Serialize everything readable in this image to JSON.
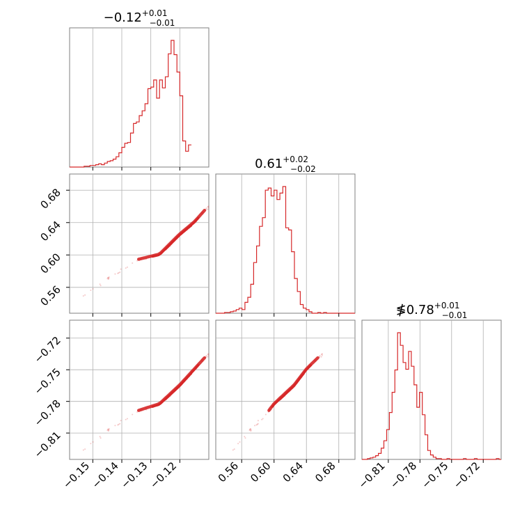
{
  "figure": {
    "hist_color": "#d62728",
    "grid_color": "#b0b0b0",
    "frame_color": "#7f7f7f"
  },
  "params": [
    {
      "title_main": "−0.12",
      "title_up": "+0.01",
      "title_down": "−0.01",
      "range": [
        -0.158,
        -0.11
      ],
      "ticks": [
        -0.15,
        -0.14,
        -0.13,
        -0.12
      ],
      "tick_labels": [
        "−0.15",
        "−0.14",
        "−0.13",
        "−0.12"
      ]
    },
    {
      "title_main": "0.61",
      "title_up": "+0.02",
      "title_down": "−0.02",
      "range": [
        0.528,
        0.7
      ],
      "ticks": [
        0.56,
        0.6,
        0.64,
        0.68
      ],
      "tick_labels": [
        "0.56",
        "0.60",
        "0.64",
        "0.68"
      ]
    },
    {
      "title_main": "≸0.78",
      "title_up": "+0.01",
      "title_down": "−0.01",
      "range": [
        -0.835,
        -0.703
      ],
      "ticks": [
        -0.81,
        -0.78,
        -0.75,
        -0.72
      ],
      "tick_labels": [
        "−0.81",
        "−0.78",
        "−0.75",
        "−0.72"
      ]
    }
  ],
  "chart_data": {
    "type": "corner",
    "parameters": [
      "p1",
      "p2",
      "p3"
    ],
    "hist1": {
      "bin_start": -0.158,
      "bin_width": 0.001,
      "counts": [
        0,
        0,
        0,
        0,
        0,
        1,
        1,
        2,
        2,
        3,
        4,
        3,
        5,
        7,
        8,
        10,
        13,
        18,
        25,
        30,
        31,
        43,
        55,
        57,
        65,
        71,
        80,
        99,
        101,
        110,
        87,
        110,
        100,
        114,
        143,
        160,
        142,
        120,
        90,
        33,
        20,
        28
      ]
    },
    "hist2": {
      "bin_start": 0.528,
      "bin_width": 0.0036,
      "counts": [
        0,
        0,
        0,
        1,
        1,
        2,
        3,
        5,
        7,
        5,
        15,
        22,
        40,
        70,
        93,
        120,
        132,
        170,
        173,
        162,
        170,
        157,
        166,
        175,
        118,
        115,
        85,
        48,
        30,
        12,
        7,
        5,
        2,
        0,
        0,
        1,
        0,
        1,
        0,
        0,
        0,
        0,
        0,
        0,
        0,
        0,
        0,
        0
      ]
    },
    "hist3": {
      "bin_start": -0.835,
      "bin_width": 0.0026,
      "counts": [
        0,
        0,
        1,
        2,
        3,
        5,
        8,
        15,
        25,
        40,
        63,
        90,
        120,
        170,
        153,
        130,
        121,
        145,
        125,
        100,
        70,
        90,
        60,
        33,
        12,
        6,
        3,
        1,
        1,
        0,
        0,
        1,
        0,
        0,
        0,
        0,
        0,
        1,
        0,
        0,
        0,
        1,
        0,
        0,
        0,
        0,
        0,
        0,
        0,
        1,
        0
      ]
    },
    "scatter_trend": [
      [
        -0.155,
        0.545,
        -0.83
      ],
      [
        -0.145,
        0.57,
        -0.808
      ],
      [
        -0.135,
        0.593,
        -0.79
      ],
      [
        -0.127,
        0.6,
        -0.783
      ],
      [
        -0.12,
        0.625,
        -0.765
      ],
      [
        -0.115,
        0.64,
        -0.75
      ],
      [
        -0.11,
        0.66,
        -0.735
      ]
    ]
  }
}
